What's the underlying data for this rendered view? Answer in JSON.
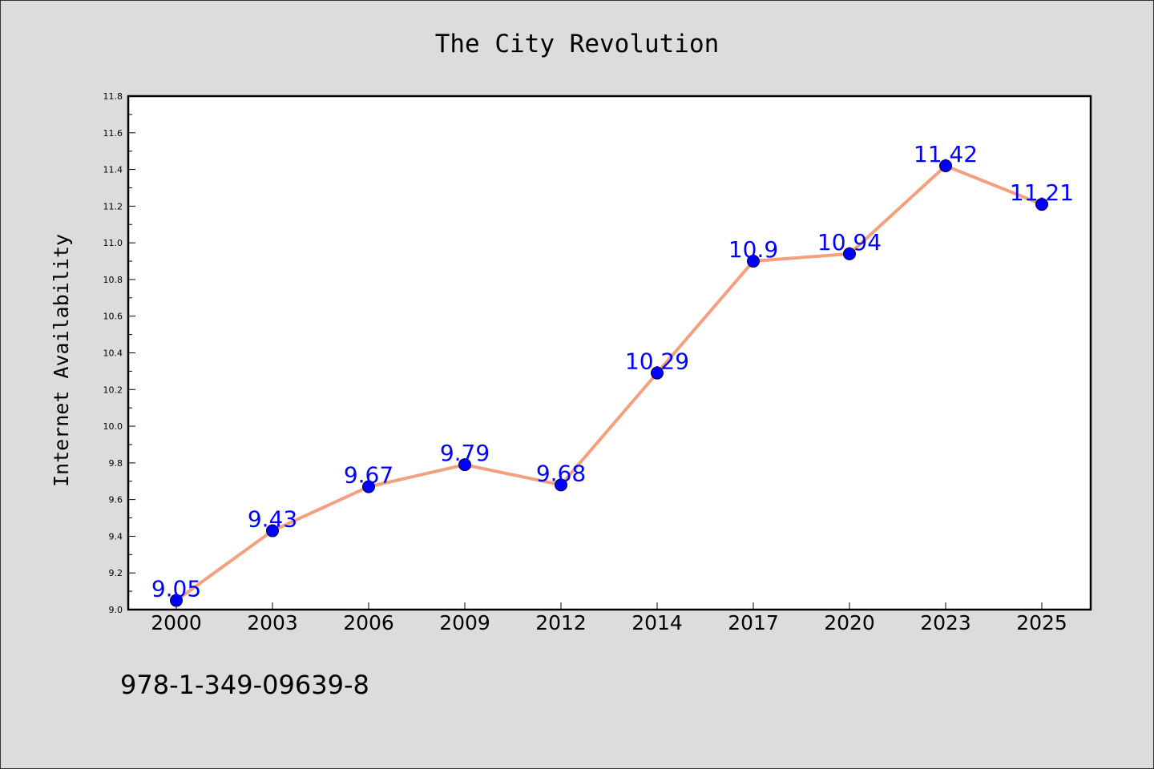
{
  "chart_data": {
    "type": "line",
    "title": "The City Revolution",
    "xlabel": "",
    "ylabel": "Internet Availability",
    "categories": [
      "2000",
      "2003",
      "2006",
      "2009",
      "2012",
      "2014",
      "2017",
      "2020",
      "2023",
      "2025"
    ],
    "series": [
      {
        "values": [
          9.05,
          9.43,
          9.67,
          9.79,
          9.68,
          10.29,
          10.9,
          10.94,
          11.42,
          11.21
        ],
        "labels": [
          "9.05",
          "9.43",
          "9.67",
          "9.79",
          "9.68",
          "10.29",
          "10.9",
          "10.94",
          "11.42",
          "11.21"
        ]
      }
    ],
    "ylim": [
      9.0,
      11.8
    ],
    "yticks": [
      "9.0",
      "9.2",
      "9.4",
      "9.6",
      "9.8",
      "10.0",
      "10.2",
      "10.4",
      "10.6",
      "10.8",
      "11.0",
      "11.2",
      "11.4",
      "11.6",
      "11.8"
    ],
    "grid": false,
    "legend": "none",
    "colors": {
      "line": "#f4a07e",
      "marker": "#0000ff",
      "marker_edge": "#000033",
      "data_label": "#0000ff",
      "background": "#dcdcdc",
      "plot_background": "#ffffff"
    }
  },
  "annotation": {
    "isbn": "978-1-349-09639-8"
  }
}
